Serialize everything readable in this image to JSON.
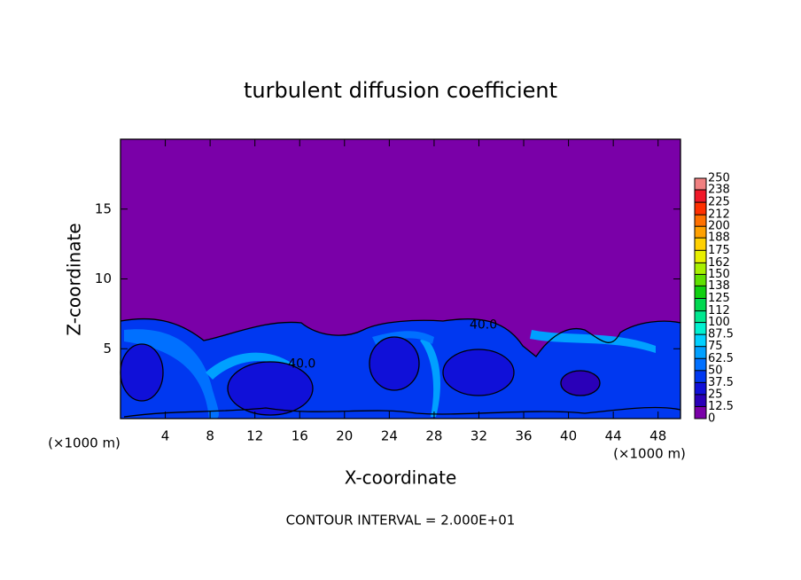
{
  "chart_data": {
    "type": "contour",
    "title": "turbulent diffusion coefficient",
    "x_label": "X-coordinate",
    "y_label": "Z-coordinate",
    "x_unit": "(×1000 m)",
    "y_unit": "(×1000 m)",
    "xlim": [
      0,
      50
    ],
    "ylim": [
      0,
      20
    ],
    "xticks": [
      4,
      8,
      12,
      16,
      20,
      24,
      28,
      32,
      36,
      40,
      44,
      48
    ],
    "yticks": [
      5,
      10,
      15
    ],
    "colorbar": {
      "ticks": [
        0,
        12.5,
        25,
        37.5,
        50,
        62.5,
        75,
        87.5,
        100,
        112,
        125,
        138,
        150,
        162,
        175,
        188,
        200,
        212,
        225,
        238,
        250
      ],
      "colors": [
        "#7a00a8",
        "#2a00b8",
        "#1010d8",
        "#0038f0",
        "#0070ff",
        "#00a0ff",
        "#00d0ff",
        "#00f0d0",
        "#00e890",
        "#00d850",
        "#10d010",
        "#60e000",
        "#a8f000",
        "#e8f000",
        "#ffd000",
        "#ffa000",
        "#ff7000",
        "#ff3000",
        "#f01828",
        "#f08080"
      ]
    },
    "contour_labels": [
      {
        "label": "40.0",
        "x": 32.4,
        "z": 6.7
      },
      {
        "label": "40.0",
        "x": 16.2,
        "z": 3.9
      }
    ],
    "footnote": "CONTOUR INTERVAL = 2.000E+01"
  }
}
